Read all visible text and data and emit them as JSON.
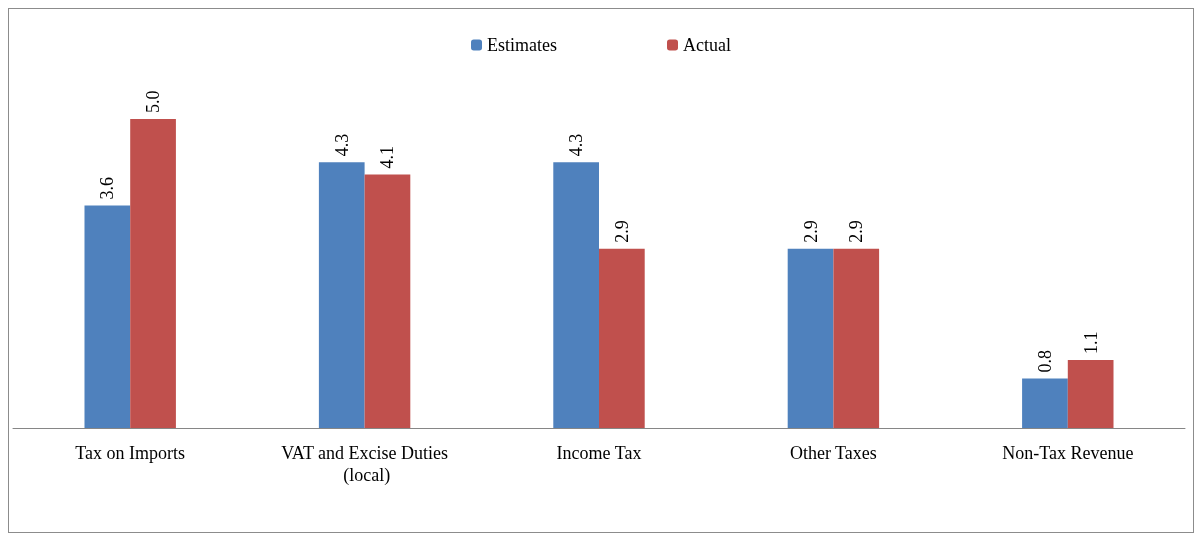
{
  "chart_data": {
    "type": "bar",
    "categories": [
      "Tax on Imports",
      "VAT and Excise Duties (local)",
      "Income Tax",
      "Other Taxes",
      "Non-Tax Revenue"
    ],
    "series": [
      {
        "name": "Estimates",
        "color": "#4f81bd",
        "values": [
          3.6,
          4.3,
          4.3,
          2.9,
          0.8
        ],
        "value_labels": [
          "3.6",
          "4.3",
          "4.3",
          "2.9",
          "0.8"
        ]
      },
      {
        "name": "Actual",
        "color": "#c0504d",
        "values": [
          5.0,
          4.1,
          2.9,
          2.9,
          1.1
        ],
        "value_labels": [
          "5.0",
          "4.1",
          "2.9",
          "2.9",
          "1.1"
        ]
      }
    ],
    "legend": "top"
  }
}
